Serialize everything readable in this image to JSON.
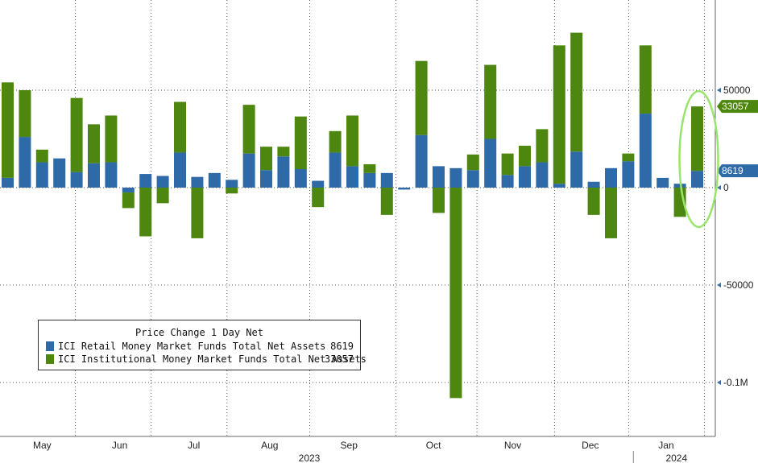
{
  "chart_data": {
    "type": "bar",
    "stacked": true,
    "title": "Price Change 1 Day Net",
    "xlabel": "",
    "ylabel": "",
    "ylim": [
      -125000,
      95000
    ],
    "y_ticks": [
      {
        "value": 50000,
        "label": "50000"
      },
      {
        "value": 0,
        "label": "0"
      },
      {
        "value": -50000,
        "label": "-50000"
      },
      {
        "value": -100000,
        "label": "-0.1M"
      }
    ],
    "month_labels": [
      {
        "label": "May",
        "at_bar": 2
      },
      {
        "label": "Jun",
        "at_bar": 6.5
      },
      {
        "label": "Jul",
        "at_bar": 10.8
      },
      {
        "label": "Aug",
        "at_bar": 15.2
      },
      {
        "label": "Sep",
        "at_bar": 19.8
      },
      {
        "label": "Oct",
        "at_bar": 24.7
      },
      {
        "label": "Nov",
        "at_bar": 29.3
      },
      {
        "label": "Dec",
        "at_bar": 33.8
      },
      {
        "label": "Jan",
        "at_bar": 38.2
      }
    ],
    "year_labels": [
      {
        "label": "2023",
        "at_bar": 17.5
      },
      {
        "label": "2024",
        "at_bar": 38.8
      }
    ],
    "colors": {
      "retail": "#2e6aa8",
      "institutional": "#4e870f",
      "grid": "#555555",
      "highlight": "#99e56b"
    },
    "series": [
      {
        "name": "ICI Retail Money Market Funds Total Net Assets",
        "last_value": "8619",
        "values": [
          5000,
          26000,
          13000,
          15000,
          8000,
          12500,
          13000,
          -2500,
          7000,
          6000,
          18000,
          5500,
          7500,
          4000,
          17500,
          9000,
          16000,
          9500,
          3500,
          18000,
          11000,
          7500,
          7500,
          -1000,
          27000,
          11000,
          10000,
          9000,
          25000,
          6500,
          11000,
          13000,
          2000,
          18500,
          3000,
          10000,
          13500,
          38000,
          5000,
          2000,
          8619
        ]
      },
      {
        "name": "ICI Institutional Money Market Funds Total Net Assets",
        "last_value": "33057",
        "values": [
          49000,
          24000,
          6500,
          0,
          38000,
          20000,
          24000,
          -8000,
          -25000,
          -8000,
          26000,
          -26000,
          0,
          -3000,
          25000,
          12000,
          5000,
          27000,
          -10000,
          11000,
          26000,
          4500,
          -14000,
          0,
          38000,
          -13000,
          -108000,
          8000,
          38000,
          11000,
          10500,
          17000,
          71000,
          61000,
          -14000,
          -26000,
          4000,
          35000,
          0,
          -15000,
          33057
        ]
      }
    ]
  }
}
